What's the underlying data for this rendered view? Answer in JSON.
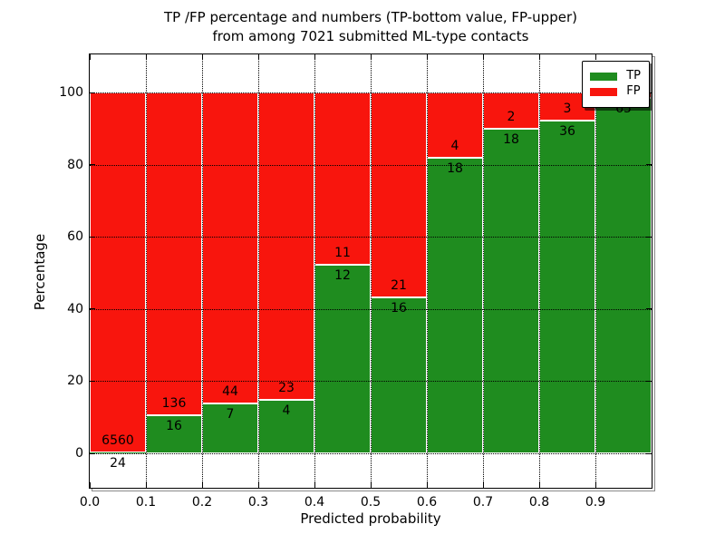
{
  "figure": {
    "title_line1": "TP /FP percentage and numbers (TP-bottom value, FP-upper)",
    "title_line2": "from among 7021 submitted ML-type contacts",
    "xlabel": "Predicted probability",
    "ylabel": "Percentage"
  },
  "chart_data": {
    "type": "bar",
    "stacked": true,
    "title": "TP /FP percentage and numbers (TP-bottom value, FP-upper)\nfrom among 7021 submitted ML-type contacts",
    "xlabel": "Predicted probability",
    "ylabel": "Percentage",
    "total_submitted_contacts": 7021,
    "xlim": [
      0.0,
      1.0
    ],
    "ylim": [
      -9.5,
      110.5
    ],
    "xticks": [
      "0.0",
      "0.1",
      "0.2",
      "0.3",
      "0.4",
      "0.5",
      "0.6",
      "0.7",
      "0.8",
      "0.9"
    ],
    "yticks": [
      0,
      20,
      40,
      60,
      80,
      100
    ],
    "grid": {
      "on": true,
      "style": "dotted",
      "color": "#000000"
    },
    "colors": {
      "tp": "#1f8c1f",
      "fp": "#f8150d",
      "bar_edge": "#ffffff"
    },
    "legend": {
      "position": "upper-right",
      "entries": [
        {
          "label": "TP",
          "color": "#1f8c1f"
        },
        {
          "label": "FP",
          "color": "#f8150d"
        }
      ]
    },
    "bars": [
      {
        "x0": 0.0,
        "x1": 0.1,
        "tp": 24,
        "fp": 6560,
        "tp_pct": 0.36,
        "tp_label": "24",
        "fp_label": "6560"
      },
      {
        "x0": 0.1,
        "x1": 0.2,
        "tp": 16,
        "fp": 136,
        "tp_pct": 10.53,
        "tp_label": "16",
        "fp_label": "136"
      },
      {
        "x0": 0.2,
        "x1": 0.3,
        "tp": 7,
        "fp": 44,
        "tp_pct": 13.73,
        "tp_label": "7",
        "fp_label": "44"
      },
      {
        "x0": 0.3,
        "x1": 0.4,
        "tp": 4,
        "fp": 23,
        "tp_pct": 14.81,
        "tp_label": "4",
        "fp_label": "23"
      },
      {
        "x0": 0.4,
        "x1": 0.5,
        "tp": 12,
        "fp": 11,
        "tp_pct": 52.17,
        "tp_label": "12",
        "fp_label": "11"
      },
      {
        "x0": 0.5,
        "x1": 0.6,
        "tp": 16,
        "fp": 21,
        "tp_pct": 43.24,
        "tp_label": "16",
        "fp_label": "21"
      },
      {
        "x0": 0.6,
        "x1": 0.7,
        "tp": 18,
        "fp": 4,
        "tp_pct": 81.82,
        "tp_label": "18",
        "fp_label": "4"
      },
      {
        "x0": 0.7,
        "x1": 0.8,
        "tp": 18,
        "fp": 2,
        "tp_pct": 90.0,
        "tp_label": "18",
        "fp_label": "2"
      },
      {
        "x0": 0.8,
        "x1": 0.9,
        "tp": 36,
        "fp": 3,
        "tp_pct": 92.31,
        "tp_label": "36",
        "fp_label": "3"
      },
      {
        "x0": 0.9,
        "x1": 1.0,
        "tp": 65,
        "fp": 1,
        "tp_pct": 98.48,
        "tp_label": "65",
        "fp_label": ""
      }
    ]
  }
}
